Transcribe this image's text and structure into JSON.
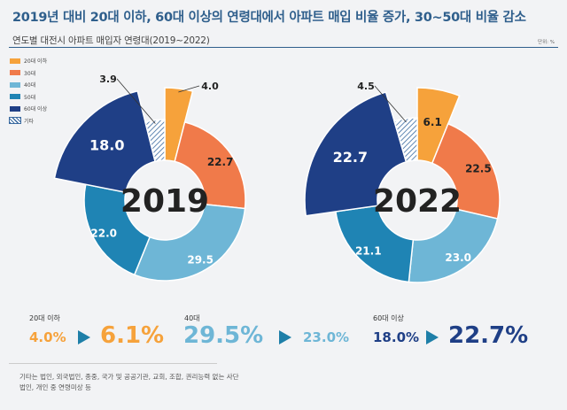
{
  "title": "2019년 대비 20대 이하, 60대 이상의 연령대에서 아파트 매입 비율 증가, 30~50대 비율 감소",
  "subtitle": "연도별 대전시 아파트 매입자 연령대(2019~2022)",
  "unit": "단위: %",
  "legend": [
    {
      "label": "20대 이하",
      "color": "#f6a23b"
    },
    {
      "label": "30대",
      "color": "#f07a4a"
    },
    {
      "label": "40대",
      "color": "#6eb6d6"
    },
    {
      "label": "50대",
      "color": "#1f84b4"
    },
    {
      "label": "60대 이상",
      "color": "#1f3f86"
    },
    {
      "label": "기타",
      "color": "hatch"
    }
  ],
  "chart_data": [
    {
      "type": "pie",
      "title": "2019",
      "categories": [
        "20대 이하",
        "30대",
        "40대",
        "50대",
        "60대 이상",
        "기타"
      ],
      "values": [
        4.0,
        22.7,
        29.5,
        22.0,
        18.0,
        3.9
      ],
      "labels": [
        "4.0",
        "22.7",
        "29.5",
        "22.0",
        "18.0",
        "3.9"
      ]
    },
    {
      "type": "pie",
      "title": "2022",
      "categories": [
        "20대 이하",
        "30대",
        "40대",
        "50대",
        "60대 이상",
        "기타"
      ],
      "values": [
        6.1,
        22.5,
        23.0,
        21.1,
        22.7,
        4.5
      ],
      "labels": [
        "6.1",
        "22.5",
        "23.0",
        "21.1",
        "22.7",
        "4.5"
      ]
    }
  ],
  "summary": [
    {
      "label": "20대 이하",
      "from": "4.0%",
      "to": "6.1%",
      "color": "#f6a23b"
    },
    {
      "label": "40대",
      "from": "29.5%",
      "to": "23.0%",
      "color": "#6eb6d6"
    },
    {
      "label": "60대 이상",
      "from": "18.0%",
      "to": "22.7%",
      "color": "#1f3f86"
    }
  ],
  "footnote": "기타는 법인, 외국법인, 종중, 국가 및 공공기관, 교회, 조합, 권리능력 없는 사단법인, 개인 중 연령미상 등"
}
